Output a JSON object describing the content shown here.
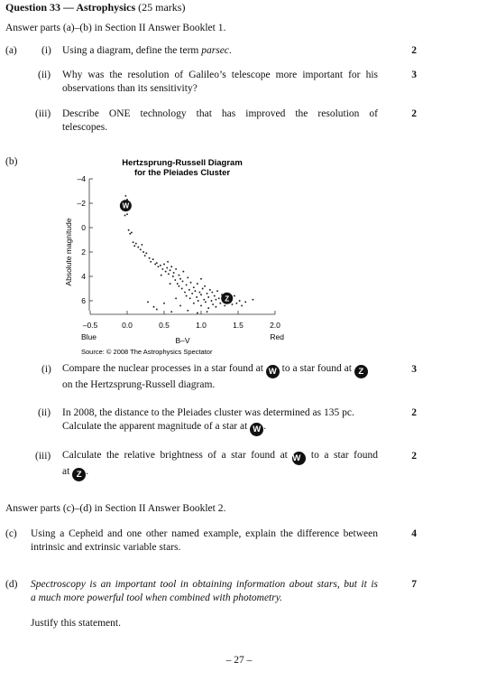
{
  "header": {
    "question": "Question 33 — Astrophysics",
    "marks": "(25 marks)"
  },
  "instructions": {
    "booklet1": "Answer parts (a)–(b) in Section II Answer Booklet 1.",
    "booklet2": "Answer parts (c)–(d) in Section II Answer Booklet 2."
  },
  "part_a": {
    "label": "(a)",
    "items": [
      {
        "num": "(i)",
        "text_before": "Using a diagram, define the term ",
        "italic": "parsec",
        "text_after": ".",
        "marks": "2"
      },
      {
        "num": "(ii)",
        "line1": "Why was the resolution of Galileo’s telescope more important for his",
        "line2": "observations than its sensitivity?",
        "marks": "3"
      },
      {
        "num": "(iii)",
        "line1": "Describe ONE technology that has improved the resolution of",
        "line2": "telescopes.",
        "marks": "2"
      }
    ]
  },
  "part_b": {
    "label": "(b)",
    "items": [
      {
        "num": "(i)",
        "pre": "Compare the nuclear processes in a star found at ",
        "mid": " to a star found at ",
        "line2": "on the Hertzsprung-Russell diagram.",
        "marks": "3"
      },
      {
        "num": "(ii)",
        "line1": "In 2008, the distance to the Pleiades cluster was determined as 135 pc.",
        "line2pre": "Calculate the apparent magnitude of a star at ",
        "line2post": ".",
        "marks": "2"
      },
      {
        "num": "(iii)",
        "pre": "Calculate the relative brightness of a star found at ",
        "mid": " to a star found",
        "line2pre": "at ",
        "line2post": ".",
        "marks": "2"
      }
    ]
  },
  "part_c": {
    "label": "(c)",
    "line1": "Using a Cepheid and one other named example, explain the difference between",
    "line2": "intrinsic and extrinsic variable stars.",
    "marks": "4"
  },
  "part_d": {
    "label": "(d)",
    "line1": "Spectroscopy is an important tool in obtaining information about stars, but it is",
    "line2": "a much more powerful tool when combined with photometry.",
    "justify": "Justify this statement.",
    "marks": "7"
  },
  "markers": {
    "w": "W",
    "z": "Z"
  },
  "page_number": "– 27 –",
  "chart_data": {
    "type": "scatter",
    "title": "Hertzsprung-Russell Diagram",
    "subtitle": "for the Pleiades Cluster",
    "xlabel": "B–V",
    "ylabel": "Absolute magnitude",
    "xlim": [
      -0.5,
      2.0
    ],
    "ylim": [
      -4,
      8
    ],
    "y_inverted": true,
    "x_ticks": [
      "–0.5",
      "0.0",
      "0.5",
      "1.0",
      "1.5",
      "2.0"
    ],
    "x_tick_values": [
      -0.5,
      0.0,
      0.5,
      1.0,
      1.5,
      2.0
    ],
    "y_ticks": [
      "–4",
      "–2",
      "0",
      "2",
      "4",
      "6"
    ],
    "y_tick_values": [
      -4,
      -2,
      0,
      2,
      4,
      6
    ],
    "x_end_labels": {
      "left": "Blue",
      "right": "Red"
    },
    "source": "Source: © 2008 The Astrophysics Spectator",
    "labeled_points": [
      {
        "label": "W",
        "x": -0.02,
        "y": -1.8
      },
      {
        "label": "Z",
        "x": 1.35,
        "y": 5.8
      }
    ],
    "points": [
      [
        -0.02,
        -2.6
      ],
      [
        0.0,
        -2.3
      ],
      [
        -0.03,
        -1.0
      ],
      [
        0.0,
        -1.1
      ],
      [
        0.02,
        0.2
      ],
      [
        0.04,
        0.5
      ],
      [
        0.06,
        0.4
      ],
      [
        0.08,
        1.2
      ],
      [
        0.1,
        1.5
      ],
      [
        0.12,
        1.3
      ],
      [
        0.15,
        1.6
      ],
      [
        0.18,
        1.8
      ],
      [
        0.2,
        1.4
      ],
      [
        0.22,
        2.0
      ],
      [
        0.24,
        2.3
      ],
      [
        0.26,
        2.1
      ],
      [
        0.3,
        2.5
      ],
      [
        0.32,
        2.8
      ],
      [
        0.35,
        2.6
      ],
      [
        0.38,
        3.0
      ],
      [
        0.4,
        2.9
      ],
      [
        0.42,
        3.2
      ],
      [
        0.45,
        3.1
      ],
      [
        0.48,
        3.4
      ],
      [
        0.5,
        3.0
      ],
      [
        0.52,
        3.6
      ],
      [
        0.54,
        3.3
      ],
      [
        0.55,
        2.8
      ],
      [
        0.56,
        3.8
      ],
      [
        0.58,
        3.5
      ],
      [
        0.6,
        3.2
      ],
      [
        0.62,
        4.0
      ],
      [
        0.63,
        3.7
      ],
      [
        0.65,
        4.3
      ],
      [
        0.66,
        3.4
      ],
      [
        0.68,
        4.6
      ],
      [
        0.7,
        3.9
      ],
      [
        0.7,
        4.8
      ],
      [
        0.72,
        4.2
      ],
      [
        0.74,
        5.0
      ],
      [
        0.75,
        4.4
      ],
      [
        0.76,
        3.6
      ],
      [
        0.78,
        5.3
      ],
      [
        0.8,
        4.7
      ],
      [
        0.8,
        5.6
      ],
      [
        0.82,
        4.1
      ],
      [
        0.84,
        5.1
      ],
      [
        0.85,
        5.8
      ],
      [
        0.86,
        4.5
      ],
      [
        0.88,
        5.4
      ],
      [
        0.9,
        4.9
      ],
      [
        0.9,
        6.2
      ],
      [
        0.92,
        5.2
      ],
      [
        0.94,
        5.7
      ],
      [
        0.95,
        4.6
      ],
      [
        0.96,
        6.0
      ],
      [
        0.98,
        5.3
      ],
      [
        1.0,
        5.5
      ],
      [
        1.0,
        6.4
      ],
      [
        1.02,
        5.0
      ],
      [
        1.04,
        5.9
      ],
      [
        1.05,
        4.8
      ],
      [
        1.06,
        6.1
      ],
      [
        1.08,
        5.4
      ],
      [
        1.1,
        5.7
      ],
      [
        1.1,
        6.6
      ],
      [
        1.12,
        5.1
      ],
      [
        1.14,
        6.0
      ],
      [
        1.15,
        5.3
      ],
      [
        1.16,
        6.3
      ],
      [
        1.18,
        5.6
      ],
      [
        1.2,
        5.9
      ],
      [
        1.2,
        6.5
      ],
      [
        1.22,
        5.2
      ],
      [
        1.24,
        5.8
      ],
      [
        1.26,
        6.2
      ],
      [
        1.28,
        5.5
      ],
      [
        1.3,
        6.0
      ],
      [
        1.32,
        6.4
      ],
      [
        1.34,
        5.7
      ],
      [
        1.38,
        6.1
      ],
      [
        1.4,
        5.9
      ],
      [
        1.42,
        6.3
      ],
      [
        1.45,
        5.6
      ],
      [
        1.48,
        6.2
      ],
      [
        1.52,
        6.0
      ],
      [
        1.55,
        6.4
      ],
      [
        1.6,
        6.1
      ],
      [
        1.7,
        5.9
      ],
      [
        0.36,
        6.5
      ],
      [
        0.4,
        6.7
      ],
      [
        0.5,
        6.2
      ],
      [
        0.6,
        6.9
      ],
      [
        0.72,
        6.4
      ],
      [
        0.82,
        6.8
      ],
      [
        0.95,
        7.0
      ],
      [
        1.08,
        6.9
      ],
      [
        0.28,
        6.1
      ],
      [
        0.66,
        5.8
      ],
      [
        1.0,
        4.2
      ],
      [
        0.58,
        4.6
      ],
      [
        0.46,
        3.9
      ]
    ]
  }
}
